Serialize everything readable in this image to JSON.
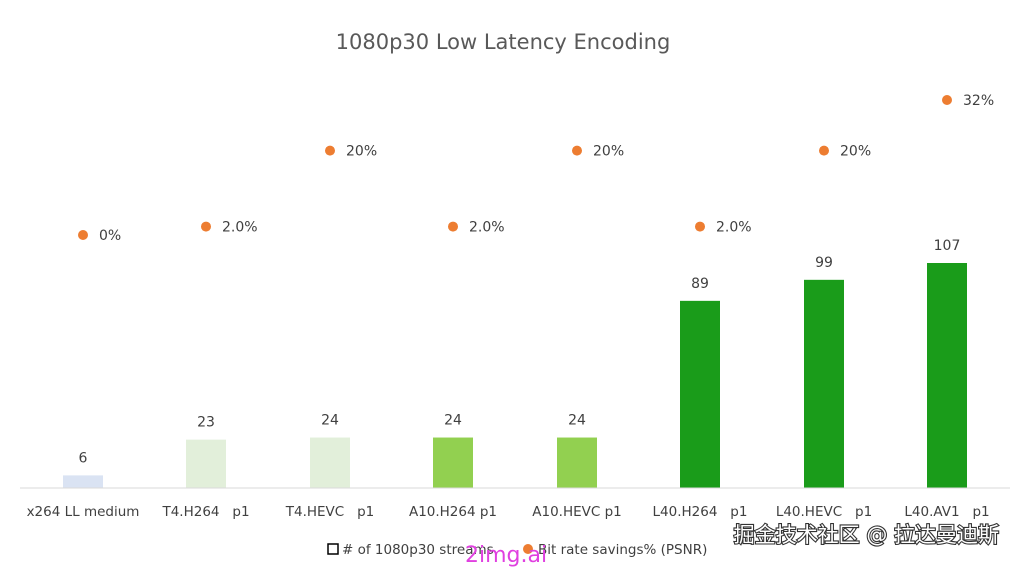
{
  "chart_data": {
    "type": "bar",
    "title": "1080p30 Low Latency Encoding",
    "xlabel": "",
    "ylabel": "",
    "grid": false,
    "legend_position": "bottom",
    "categories": [
      "x264 LL medium",
      "T4.H264   p1",
      "T4.HEVC   p1",
      "A10.H264 p1",
      "A10.HEVC p1",
      "L40.H264   p1",
      "L40.HEVC   p1",
      "L40.AV1   p1"
    ],
    "series": [
      {
        "name": "# of 1080p30 streams",
        "kind": "bar",
        "values": [
          6,
          23,
          24,
          24,
          24,
          89,
          99,
          107
        ],
        "labels": [
          "6",
          "23",
          "24",
          "24",
          "24",
          "89",
          "99",
          "107"
        ],
        "colors": [
          "#dae3f3",
          "#e2efda",
          "#e2efda",
          "#92d050",
          "#92d050",
          "#1a9c1a",
          "#1a9c1a",
          "#1a9c1a"
        ]
      },
      {
        "name": "Bit rate savings% (PSNR)",
        "kind": "scatter",
        "values": [
          0,
          2,
          20,
          2,
          20,
          2,
          20,
          32
        ],
        "labels": [
          "0%",
          "2.0%",
          "20%",
          "2.0%",
          "20%",
          "2.0%",
          "20%",
          "32%"
        ],
        "color": "#ed7d31"
      }
    ]
  },
  "legend": {
    "bar_label": "# of 1080p30 streams",
    "point_label": "Bit rate savings% (PSNR)"
  },
  "watermarks": {
    "primary": "掘金技术社区 @ 拉达曼迪斯",
    "secondary": "2img.ai"
  }
}
